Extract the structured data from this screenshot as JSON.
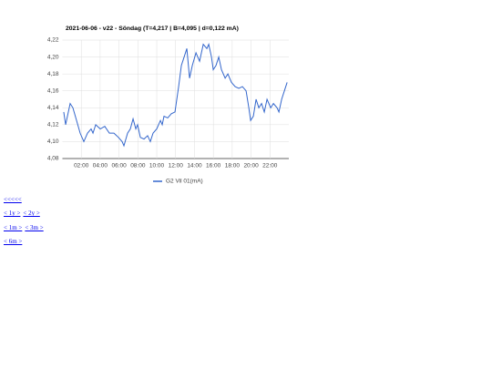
{
  "chart_data": {
    "type": "line",
    "title": "2021-06-06 - v22 - Söndag (T=4,217 | B=4,095 | d=0,122 mA)",
    "x": [
      0.14,
      0.34,
      0.82,
      1.11,
      1.5,
      1.88,
      2.27,
      2.66,
      3.04,
      3.24,
      3.53,
      4.01,
      4.49,
      4.98,
      5.46,
      5.94,
      6.33,
      6.52,
      6.91,
      7.2,
      7.49,
      7.78,
      7.97,
      8.26,
      8.65,
      9.03,
      9.32,
      9.61,
      10.0,
      10.39,
      10.58,
      10.77,
      11.16,
      11.55,
      11.93,
      12.32,
      12.61,
      12.9,
      13.19,
      13.48,
      13.77,
      14.16,
      14.54,
      14.93,
      15.31,
      15.51,
      15.8,
      15.99,
      16.28,
      16.57,
      16.86,
      17.25,
      17.54,
      17.92,
      18.31,
      18.7,
      19.08,
      19.47,
      19.76,
      19.95,
      20.24,
      20.53,
      20.82,
      21.11,
      21.4,
      21.69,
      22.08,
      22.37,
      22.75,
      22.95,
      23.24,
      23.53,
      23.82
    ],
    "series": [
      {
        "name": "G2 Vil 01(mA)",
        "color": "#3366cc",
        "values": [
          4.135,
          4.12,
          4.145,
          4.14,
          4.125,
          4.11,
          4.1,
          4.11,
          4.115,
          4.11,
          4.12,
          4.115,
          4.118,
          4.11,
          4.11,
          4.105,
          4.1,
          4.095,
          4.11,
          4.115,
          4.127,
          4.115,
          4.12,
          4.105,
          4.103,
          4.107,
          4.1,
          4.11,
          4.115,
          4.125,
          4.12,
          4.13,
          4.128,
          4.133,
          4.135,
          4.165,
          4.19,
          4.2,
          4.21,
          4.175,
          4.19,
          4.205,
          4.195,
          4.215,
          4.21,
          4.215,
          4.2,
          4.185,
          4.19,
          4.2,
          4.185,
          4.175,
          4.18,
          4.17,
          4.165,
          4.163,
          4.165,
          4.16,
          4.14,
          4.125,
          4.13,
          4.15,
          4.14,
          4.145,
          4.135,
          4.15,
          4.14,
          4.145,
          4.14,
          4.135,
          4.15,
          4.16,
          4.17
        ]
      }
    ],
    "xlim": [
      0,
      24
    ],
    "xticks": [
      {
        "value": 2,
        "label": "02:00"
      },
      {
        "value": 4,
        "label": "04:00"
      },
      {
        "value": 6,
        "label": "06:00"
      },
      {
        "value": 8,
        "label": "08:00"
      },
      {
        "value": 10,
        "label": "10:00"
      },
      {
        "value": 12,
        "label": "12:00"
      },
      {
        "value": 14,
        "label": "14:00"
      },
      {
        "value": 16,
        "label": "16:00"
      },
      {
        "value": 18,
        "label": "18:00"
      },
      {
        "value": 20,
        "label": "20:00"
      },
      {
        "value": 22,
        "label": "22:00"
      }
    ],
    "ylim": [
      4.08,
      4.22
    ],
    "yticks": [
      {
        "value": 4.08,
        "label": "4,08"
      },
      {
        "value": 4.1,
        "label": "4,10"
      },
      {
        "value": 4.12,
        "label": "4,12"
      },
      {
        "value": 4.14,
        "label": "4,14"
      },
      {
        "value": 4.16,
        "label": "4,16"
      },
      {
        "value": 4.18,
        "label": "4,18"
      },
      {
        "value": 4.2,
        "label": "4,20"
      },
      {
        "value": 4.22,
        "label": "4,22"
      }
    ],
    "grid": true,
    "legend": "bottom"
  },
  "links": [
    [
      "<<<<<"
    ],
    [
      "< 1y >",
      "< 2y >"
    ],
    [
      "< 1m >",
      "< 3m >"
    ],
    [
      "< 6m >"
    ]
  ]
}
